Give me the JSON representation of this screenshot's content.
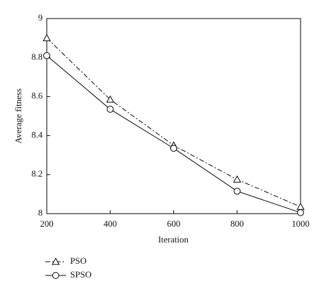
{
  "chart_data": {
    "type": "line",
    "x_label": "Iteration",
    "y_label": "Average fitness",
    "x": [
      200,
      400,
      600,
      800,
      1000
    ],
    "series": [
      {
        "name": "PSO",
        "color": "#000000",
        "line_style": "dashdot",
        "marker": "triangle",
        "values": [
          8.9,
          8.585,
          8.35,
          8.175,
          8.035
        ]
      },
      {
        "name": "SPSO",
        "color": "#000000",
        "line_style": "solid",
        "marker": "circle",
        "values": [
          8.81,
          8.535,
          8.335,
          8.115,
          8.005
        ]
      }
    ],
    "xlim": [
      200,
      1000
    ],
    "xticks": [
      200,
      400,
      600,
      800,
      1000
    ],
    "ylim": [
      8,
      9
    ],
    "yticks": [
      8,
      8.2,
      8.4,
      8.6,
      8.8,
      9
    ],
    "grid": false,
    "legend": "below"
  }
}
